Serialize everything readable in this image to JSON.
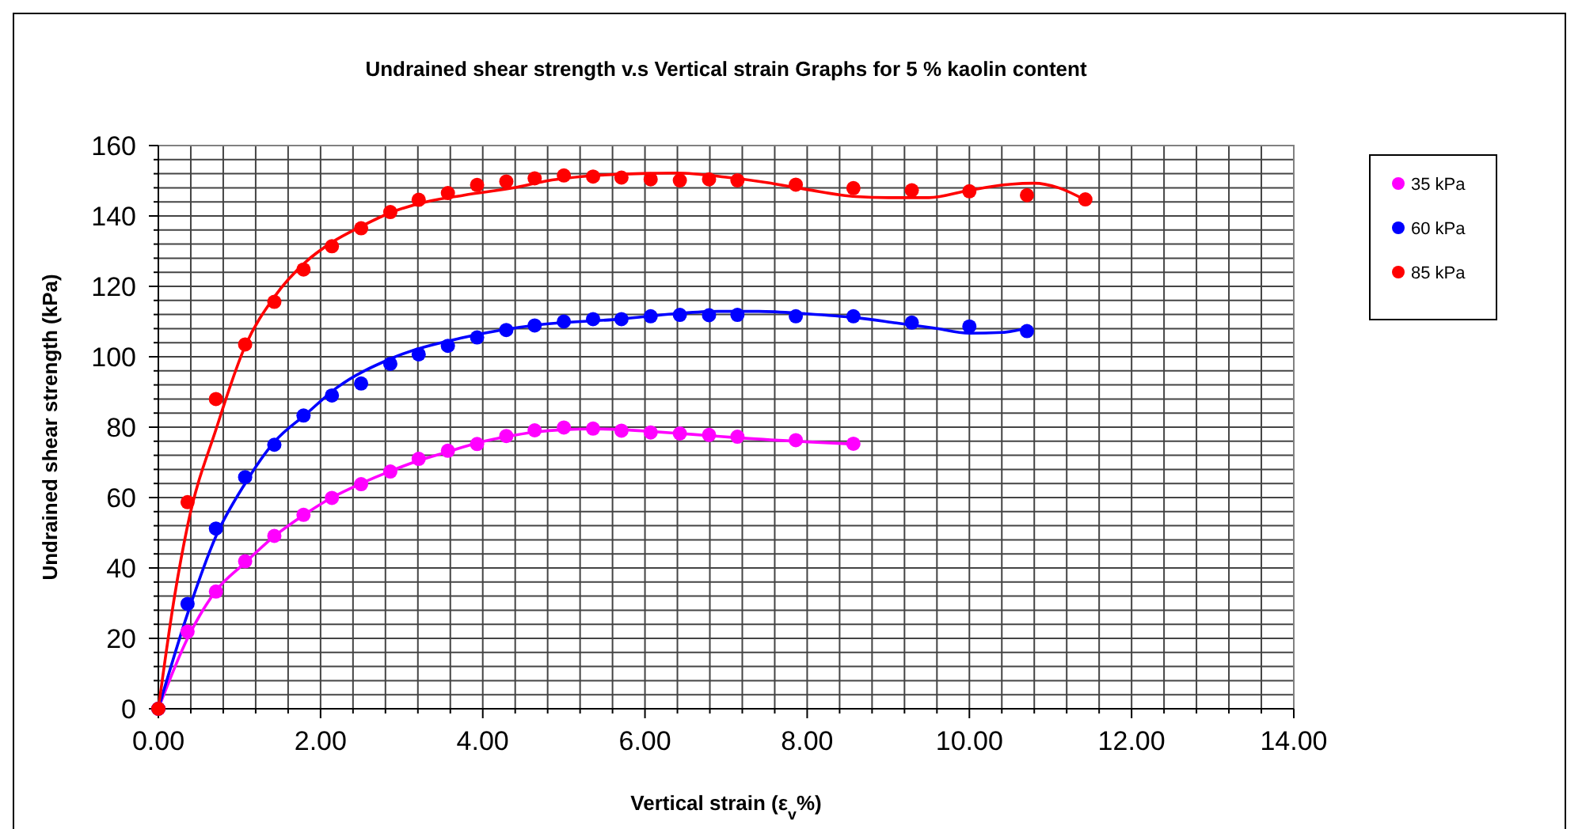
{
  "chart_data": {
    "type": "scatter",
    "title": "Undrained shear strength v.s Vertical strain Graphs for 5 % kaolin content",
    "xlabel": "Vertical strain (ε$_{v}$%)",
    "ylabel": "Undrained shear strength (kPa)",
    "xlim": [
      0,
      14
    ],
    "ylim": [
      0,
      160
    ],
    "xticks": [
      {
        "value": 0,
        "label": "0.00"
      },
      {
        "value": 0.4,
        "label": null
      },
      {
        "value": 0.8,
        "label": null
      },
      {
        "value": 1.2,
        "label": null
      },
      {
        "value": 1.6,
        "label": null
      },
      {
        "value": 2,
        "label": "2.00"
      },
      {
        "value": 2.4,
        "label": null
      },
      {
        "value": 2.8,
        "label": null
      },
      {
        "value": 3.2,
        "label": null
      },
      {
        "value": 3.6,
        "label": null
      },
      {
        "value": 4,
        "label": "4.00"
      },
      {
        "value": 4.4,
        "label": null
      },
      {
        "value": 4.8,
        "label": null
      },
      {
        "value": 5.2,
        "label": null
      },
      {
        "value": 5.6,
        "label": null
      },
      {
        "value": 6,
        "label": "6.00"
      },
      {
        "value": 6.4,
        "label": null
      },
      {
        "value": 6.8,
        "label": null
      },
      {
        "value": 7.2,
        "label": null
      },
      {
        "value": 7.6,
        "label": null
      },
      {
        "value": 8,
        "label": "8.00"
      },
      {
        "value": 8.4,
        "label": null
      },
      {
        "value": 8.8,
        "label": null
      },
      {
        "value": 9.2,
        "label": null
      },
      {
        "value": 9.6,
        "label": null
      },
      {
        "value": 10,
        "label": "10.00"
      },
      {
        "value": 10.4,
        "label": null
      },
      {
        "value": 10.8,
        "label": null
      },
      {
        "value": 11.2,
        "label": null
      },
      {
        "value": 11.6,
        "label": null
      },
      {
        "value": 12,
        "label": "12.00"
      },
      {
        "value": 12.4,
        "label": null
      },
      {
        "value": 12.8,
        "label": null
      },
      {
        "value": 13.2,
        "label": null
      },
      {
        "value": 13.6,
        "label": null
      },
      {
        "value": 14,
        "label": "14.00"
      }
    ],
    "yticks": [
      0,
      {
        "value": 4,
        "label": null
      },
      {
        "value": 8,
        "label": null
      },
      {
        "value": 12,
        "label": null
      },
      {
        "value": 16,
        "label": null
      },
      20,
      {
        "value": 24,
        "label": null
      },
      {
        "value": 28,
        "label": null
      },
      {
        "value": 32,
        "label": null
      },
      {
        "value": 36,
        "label": null
      },
      40,
      {
        "value": 44,
        "label": null
      },
      {
        "value": 48,
        "label": null
      },
      {
        "value": 52,
        "label": null
      },
      {
        "value": 56,
        "label": null
      },
      60,
      {
        "value": 64,
        "label": null
      },
      {
        "value": 68,
        "label": null
      },
      {
        "value": 72,
        "label": null
      },
      {
        "value": 76,
        "label": null
      },
      80,
      {
        "value": 84,
        "label": null
      },
      {
        "value": 88,
        "label": null
      },
      {
        "value": 92,
        "label": null
      },
      {
        "value": 96,
        "label": null
      },
      100,
      {
        "value": 104,
        "label": null
      },
      {
        "value": 108,
        "label": null
      },
      {
        "value": 112,
        "label": null
      },
      {
        "value": 116,
        "label": null
      },
      120,
      {
        "value": 124,
        "label": null
      },
      {
        "value": 128,
        "label": null
      },
      {
        "value": 132,
        "label": null
      },
      {
        "value": 136,
        "label": null
      },
      140,
      {
        "value": 144,
        "label": null
      },
      {
        "value": 148,
        "label": null
      },
      {
        "value": 152,
        "label": null
      },
      {
        "value": 156,
        "label": null
      },
      160
    ],
    "grid": true,
    "legend": "right",
    "marker": "circle",
    "series": [
      {
        "name": "35 kPa",
        "color": "#ff00ff",
        "x": [
          0,
          0.36,
          0.71,
          1.07,
          1.43,
          1.79,
          2.14,
          2.5,
          2.86,
          3.21,
          3.57,
          3.93,
          4.29,
          4.64,
          5.0,
          5.36,
          5.71,
          6.07,
          6.43,
          6.79,
          7.14,
          7.86,
          8.57
        ],
        "values": [
          0,
          21.9,
          33.3,
          41.9,
          49.1,
          55.1,
          59.9,
          63.8,
          67.4,
          71,
          73.3,
          75.2,
          77.5,
          79.1,
          79.9,
          79.6,
          79,
          78.5,
          78.2,
          77.8,
          77.3,
          76.3,
          75.3
        ]
      },
      {
        "name": "60 kPa",
        "color": "#0000ff",
        "x": [
          0,
          0.36,
          0.71,
          1.07,
          1.43,
          1.79,
          2.14,
          2.5,
          2.86,
          3.21,
          3.57,
          3.93,
          4.29,
          4.64,
          5.0,
          5.36,
          5.71,
          6.07,
          6.43,
          6.79,
          7.14,
          7.86,
          8.57,
          9.29,
          10.0,
          10.71
        ],
        "values": [
          0,
          29.8,
          51.2,
          65.8,
          75,
          83.3,
          89,
          92.4,
          98,
          100.7,
          103.1,
          105.5,
          107.6,
          108.9,
          110,
          110.7,
          110.7,
          111.5,
          111.9,
          111.8,
          111.9,
          111.5,
          111.5,
          109.7,
          108.6,
          107.3
        ]
      },
      {
        "name": "85 kPa",
        "color": "#ff0000",
        "x": [
          0,
          0.36,
          0.71,
          1.07,
          1.43,
          1.79,
          2.14,
          2.5,
          2.86,
          3.21,
          3.57,
          3.93,
          4.29,
          4.64,
          5.0,
          5.36,
          5.71,
          6.07,
          6.43,
          6.79,
          7.14,
          7.86,
          8.57,
          9.29,
          10.0,
          10.71,
          11.43
        ],
        "values": [
          0,
          58.7,
          88,
          103.5,
          115.6,
          124.8,
          131.4,
          136.5,
          141.1,
          144.6,
          146.5,
          148.8,
          149.8,
          150.7,
          151.5,
          151.2,
          150.9,
          150.4,
          150.1,
          150.4,
          150.1,
          148.9,
          147.9,
          147.3,
          147,
          145.9,
          144.7
        ]
      },
      {
        "type": "line",
        "marker": "none",
        "color": "#ff00ff",
        "x": [
          0,
          0.36,
          0.71,
          1.07,
          1.43,
          1.79,
          2.14,
          2.5,
          2.86,
          3.21,
          3.57,
          3.93,
          4.29,
          4.64,
          5.0,
          5.36,
          5.71,
          6.07,
          6.43,
          6.79,
          7.14,
          7.86,
          8.57
        ],
        "values": [
          0,
          20,
          33.5,
          41.5,
          49,
          55,
          60,
          64,
          67.5,
          70.5,
          73,
          75.5,
          77.3,
          78.6,
          79.3,
          79.5,
          79.3,
          78.8,
          78.2,
          77.6,
          77,
          76,
          75.2
        ]
      },
      {
        "type": "line",
        "marker": "none",
        "color": "#0000ff",
        "x": [
          0,
          0.36,
          0.71,
          1.07,
          1.43,
          1.82,
          2.2,
          2.87,
          3.77,
          4.74,
          5.7,
          6.36,
          6.9,
          7.4,
          8.0,
          8.6,
          9.1,
          9.55,
          10.0,
          10.4,
          10.72
        ],
        "values": [
          0,
          27,
          49,
          64,
          75.8,
          83.7,
          91.2,
          99.5,
          105.5,
          109.2,
          110.7,
          112.2,
          112.9,
          112.9,
          112.2,
          111.1,
          109.6,
          108.2,
          106.7,
          106.9,
          108.2
        ]
      },
      {
        "type": "line",
        "marker": "none",
        "color": "#ff0000",
        "x": [
          0,
          0.2,
          0.36,
          0.72,
          1.07,
          1.43,
          1.82,
          2.14,
          2.5,
          2.87,
          3.3,
          3.77,
          4.43,
          4.8,
          5.4,
          6.05,
          6.4,
          7.0,
          7.5,
          8.0,
          8.6,
          9.0,
          9.5,
          10.0,
          10.5,
          10.8,
          11.1,
          11.43
        ],
        "values": [
          0,
          32,
          52,
          80,
          103,
          117,
          127,
          132.5,
          137,
          141,
          144,
          145.9,
          148.2,
          150,
          151.5,
          152.1,
          152.2,
          151,
          149.5,
          147.5,
          145.5,
          145.2,
          145.2,
          147.3,
          149,
          149.3,
          148,
          144.5
        ]
      }
    ]
  }
}
